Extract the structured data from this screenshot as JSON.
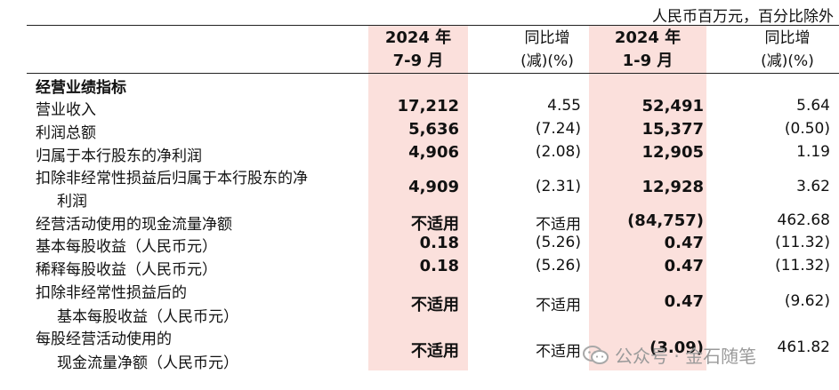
{
  "unit_note": "人民币百万元，百分比除外",
  "headers": {
    "q_period_line1": "2024 年",
    "q_period_line2": "7-9 月",
    "yoy_line1": "同比增",
    "yoy_line2": "(减)(%)",
    "ytd_period_line1": "2024 年",
    "ytd_period_line2": "1-9 月",
    "yoy2_line1": "同比增",
    "yoy2_line2": "(减)(%)"
  },
  "section_title": "经营业绩指标",
  "rows": [
    {
      "label": "营业收入",
      "q": "17,212",
      "q_yoy": "4.55",
      "ytd": "52,491",
      "ytd_yoy": "5.64"
    },
    {
      "label": "利润总额",
      "q": "5,636",
      "q_yoy": "(7.24)",
      "ytd": "15,377",
      "ytd_yoy": "(0.50)"
    },
    {
      "label": "归属于本行股东的净利润",
      "q": "4,906",
      "q_yoy": "(2.08)",
      "ytd": "12,905",
      "ytd_yoy": "1.19"
    },
    {
      "label": "扣除非经常性损益后归属于本行股东的净",
      "label2": "利润",
      "q": "4,909",
      "q_yoy": "(2.31)",
      "ytd": "12,928",
      "ytd_yoy": "3.62"
    },
    {
      "label": "经营活动使用的现金流量净额",
      "q": "不适用",
      "q_yoy": "不适用",
      "ytd": "(84,757)",
      "ytd_yoy": "462.68"
    },
    {
      "label": "基本每股收益（人民币元）",
      "q": "0.18",
      "q_yoy": "(5.26)",
      "ytd": "0.47",
      "ytd_yoy": "(11.32)"
    },
    {
      "label": "稀释每股收益（人民币元）",
      "q": "0.18",
      "q_yoy": "(5.26)",
      "ytd": "0.47",
      "ytd_yoy": "(11.32)"
    },
    {
      "label": "扣除非经常性损益后的",
      "label2": "基本每股收益（人民币元）",
      "q": "不适用",
      "q_yoy": "不适用",
      "ytd": "0.47",
      "ytd_yoy": "(9.62)"
    },
    {
      "label": "每股经营活动使用的",
      "label2": "现金流量净额（人民币元）",
      "q": "不适用",
      "q_yoy": "不适用",
      "ytd": "(3.09)",
      "ytd_yoy": "461.82"
    }
  ],
  "watermark": {
    "text": "公众号 · 金石随笔",
    "icon": "wechat-icon"
  }
}
